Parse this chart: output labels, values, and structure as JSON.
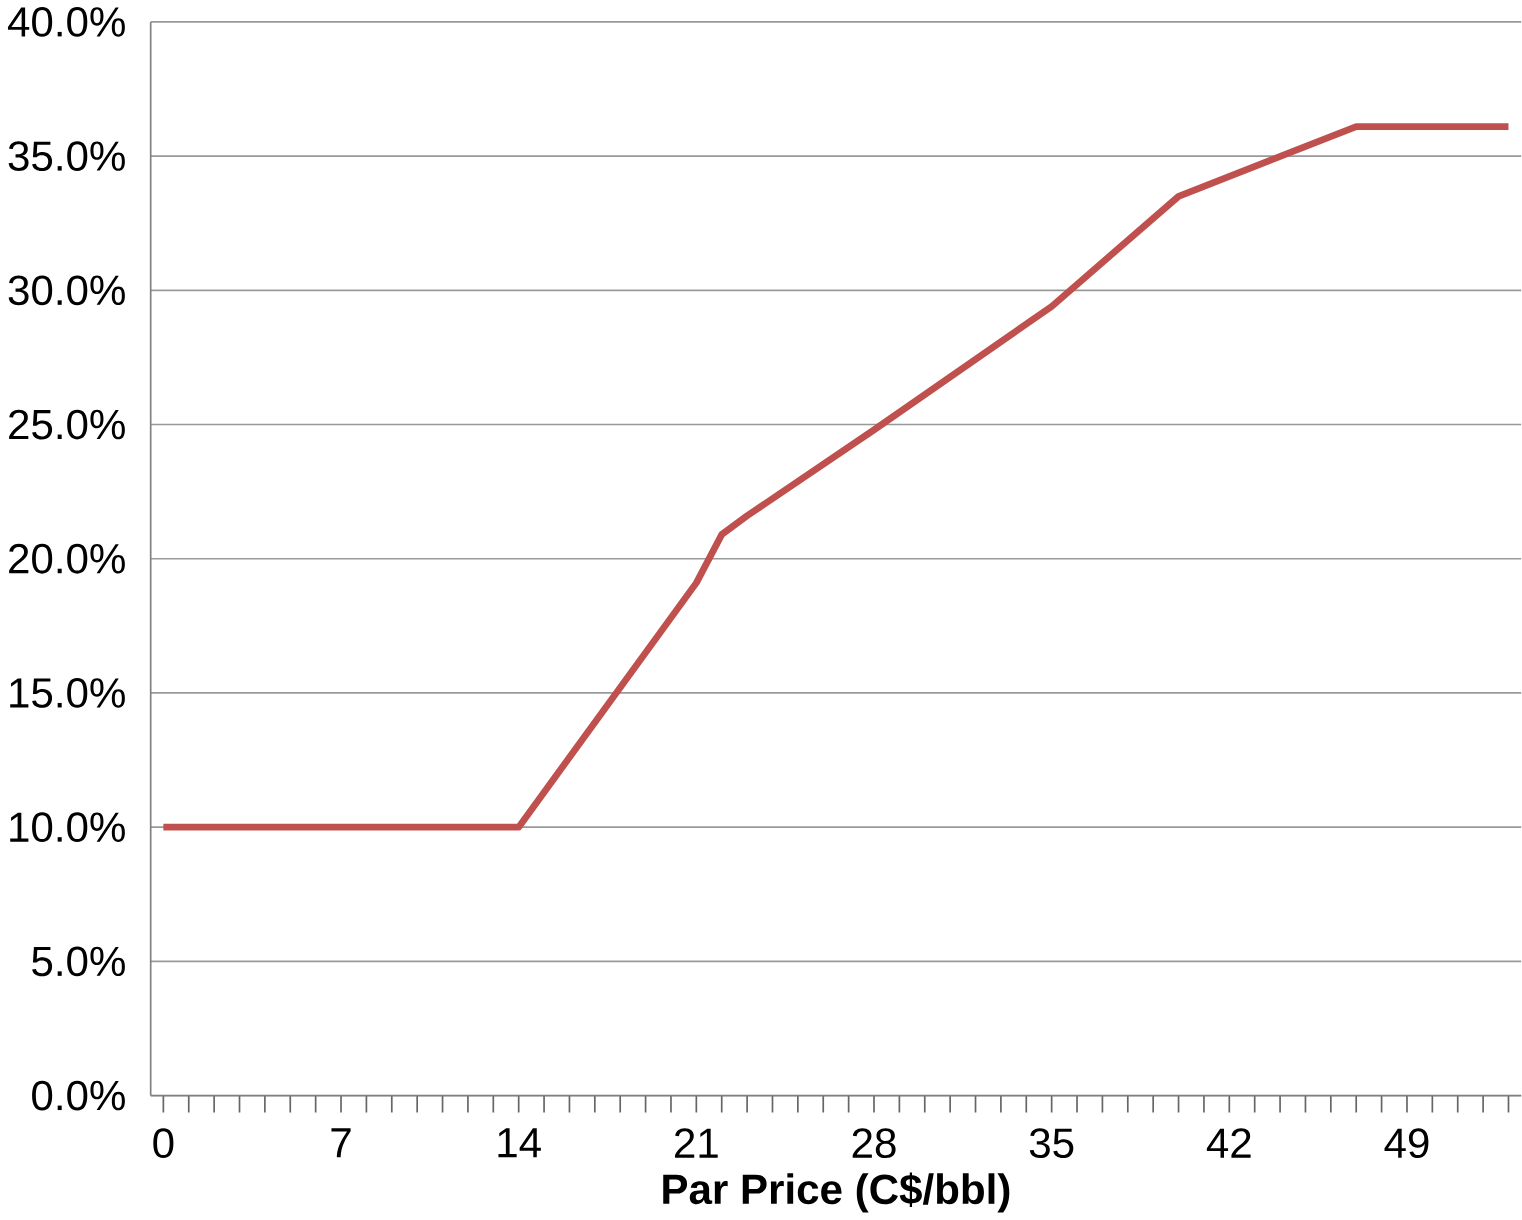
{
  "chart_data": {
    "type": "line",
    "xlabel": "Par Price (C$/bbl)",
    "series": [
      {
        "color": "#c0504d",
        "x": [
          0,
          14,
          21,
          22,
          23,
          28,
          35,
          40,
          47,
          53
        ],
        "values": [
          10,
          10,
          19.1,
          20.9,
          21.6,
          24.8,
          29.4,
          33.5,
          36.1,
          36.1
        ]
      }
    ],
    "xlim": [
      -0.5,
      53.5
    ],
    "xticks": [
      0,
      {
        "value": 1,
        "label": null
      },
      {
        "value": 2,
        "label": null
      },
      {
        "value": 3,
        "label": null
      },
      {
        "value": 4,
        "label": null
      },
      {
        "value": 5,
        "label": null
      },
      {
        "value": 6,
        "label": null
      },
      7,
      {
        "value": 8,
        "label": null
      },
      {
        "value": 9,
        "label": null
      },
      {
        "value": 10,
        "label": null
      },
      {
        "value": 11,
        "label": null
      },
      {
        "value": 12,
        "label": null
      },
      {
        "value": 13,
        "label": null
      },
      14,
      {
        "value": 15,
        "label": null
      },
      {
        "value": 16,
        "label": null
      },
      {
        "value": 17,
        "label": null
      },
      {
        "value": 18,
        "label": null
      },
      {
        "value": 19,
        "label": null
      },
      {
        "value": 20,
        "label": null
      },
      21,
      {
        "value": 22,
        "label": null
      },
      {
        "value": 23,
        "label": null
      },
      {
        "value": 24,
        "label": null
      },
      {
        "value": 25,
        "label": null
      },
      {
        "value": 26,
        "label": null
      },
      {
        "value": 27,
        "label": null
      },
      28,
      {
        "value": 29,
        "label": null
      },
      {
        "value": 30,
        "label": null
      },
      {
        "value": 31,
        "label": null
      },
      {
        "value": 32,
        "label": null
      },
      {
        "value": 33,
        "label": null
      },
      {
        "value": 34,
        "label": null
      },
      35,
      {
        "value": 36,
        "label": null
      },
      {
        "value": 37,
        "label": null
      },
      {
        "value": 38,
        "label": null
      },
      {
        "value": 39,
        "label": null
      },
      {
        "value": 40,
        "label": null
      },
      {
        "value": 41,
        "label": null
      },
      42,
      {
        "value": 43,
        "label": null
      },
      {
        "value": 44,
        "label": null
      },
      {
        "value": 45,
        "label": null
      },
      {
        "value": 46,
        "label": null
      },
      {
        "value": 47,
        "label": null
      },
      {
        "value": 48,
        "label": null
      },
      49,
      {
        "value": 50,
        "label": null
      },
      {
        "value": 51,
        "label": null
      },
      {
        "value": 52,
        "label": null
      },
      {
        "value": 53,
        "label": null
      }
    ],
    "ylim": [
      0,
      40
    ],
    "yticks": [
      {
        "value": 0,
        "label": "0.0%"
      },
      {
        "value": 5,
        "label": "5.0%"
      },
      {
        "value": 10,
        "label": "10.0%"
      },
      {
        "value": 15,
        "label": "15.0%"
      },
      {
        "value": 20,
        "label": "20.0%"
      },
      {
        "value": 25,
        "label": "25.0%"
      },
      {
        "value": 30,
        "label": "30.0%"
      },
      {
        "value": 35,
        "label": "35.0%"
      },
      {
        "value": 40,
        "label": "40.0%"
      }
    ],
    "grid": "y",
    "marker": "none",
    "line_style": "solid"
  }
}
